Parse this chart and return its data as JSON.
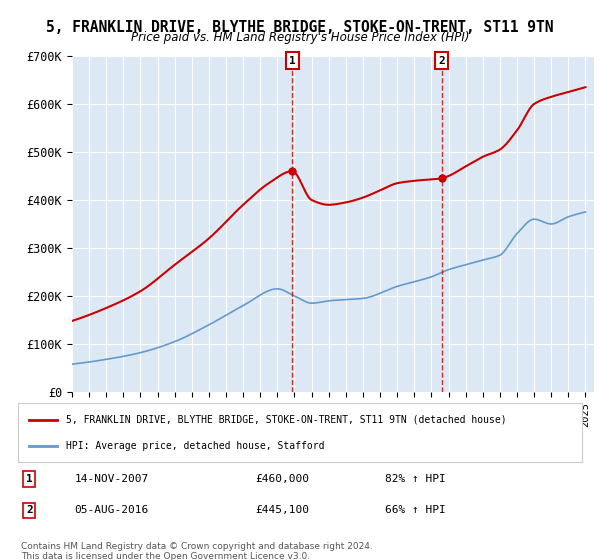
{
  "title": "5, FRANKLIN DRIVE, BLYTHE BRIDGE, STOKE-ON-TRENT, ST11 9TN",
  "subtitle": "Price paid vs. HM Land Registry's House Price Index (HPI)",
  "ylim": [
    0,
    700000
  ],
  "yticks": [
    0,
    100000,
    200000,
    300000,
    400000,
    500000,
    600000,
    700000
  ],
  "ytick_labels": [
    "£0",
    "£100K",
    "£200K",
    "£300K",
    "£400K",
    "£500K",
    "£600K",
    "£700K"
  ],
  "xmin": 1995.0,
  "xmax": 2025.5,
  "bg_color": "#dce9f5",
  "plot_bg": "#dce9f5",
  "grid_color": "white",
  "house_line_color": "#cc0000",
  "hpi_line_color": "#6699cc",
  "transaction1_x": 2007.87,
  "transaction1_y": 460000,
  "transaction2_x": 2016.59,
  "transaction2_y": 445100,
  "legend_house": "5, FRANKLIN DRIVE, BLYTHE BRIDGE, STOKE-ON-TRENT, ST11 9TN (detached house)",
  "legend_hpi": "HPI: Average price, detached house, Stafford",
  "note1_date": "14-NOV-2007",
  "note1_price": "£460,000",
  "note1_hpi": "82% ↑ HPI",
  "note2_date": "05-AUG-2016",
  "note2_price": "£445,100",
  "note2_hpi": "66% ↑ HPI",
  "footer": "Contains HM Land Registry data © Crown copyright and database right 2024.\nThis data is licensed under the Open Government Licence v3.0."
}
